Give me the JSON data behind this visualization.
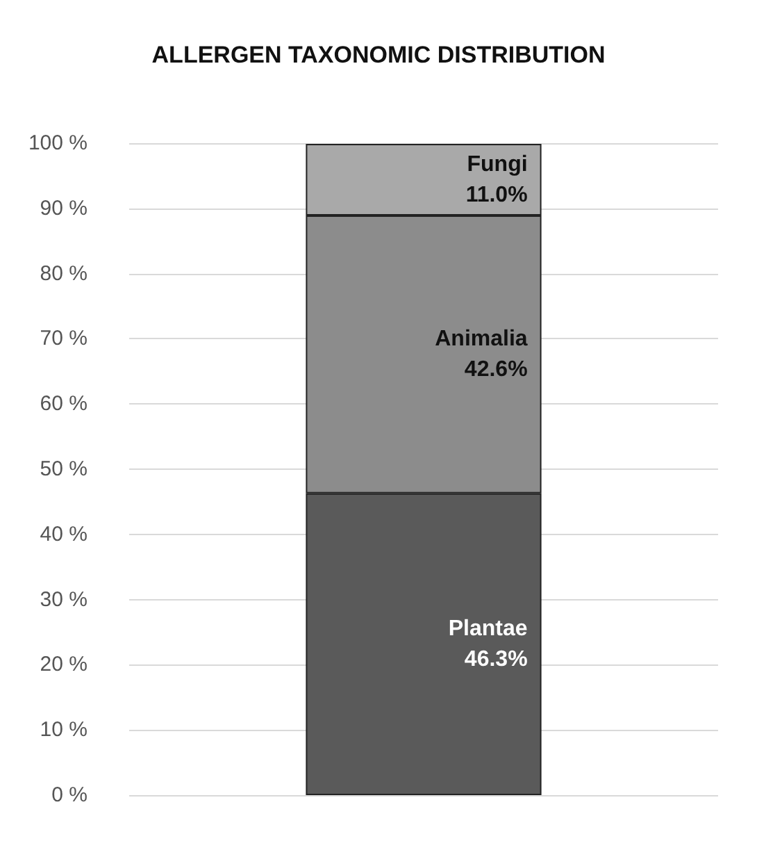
{
  "chart_data": {
    "type": "bar",
    "title": "ALLERGEN TAXONOMIC DISTRIBUTION",
    "categories": [
      null
    ],
    "stacked": true,
    "series": [
      {
        "name": "Plantae",
        "color": "#5a5a5a",
        "values": [
          46.3
        ],
        "value_labels": [
          "46.3%"
        ]
      },
      {
        "name": "Animalia",
        "color": "#8c8c8c",
        "values": [
          42.6
        ],
        "value_labels": [
          "42.6%"
        ]
      },
      {
        "name": "Fungi",
        "color": "#a9a9a9",
        "values": [
          11.0
        ],
        "value_labels": [
          "11.0%"
        ]
      }
    ],
    "ylim": [
      0,
      100
    ],
    "yticks": [
      {
        "value": 0,
        "label": "0 %"
      },
      {
        "value": 10,
        "label": "10 %"
      },
      {
        "value": 20,
        "label": "20 %"
      },
      {
        "value": 30,
        "label": "30 %"
      },
      {
        "value": 40,
        "label": "40 %"
      },
      {
        "value": 50,
        "label": "50 %"
      },
      {
        "value": 60,
        "label": "60 %"
      },
      {
        "value": 70,
        "label": "70 %"
      },
      {
        "value": 80,
        "label": "80 %"
      },
      {
        "value": 90,
        "label": "90 %"
      },
      {
        "value": 100,
        "label": "100 %"
      }
    ],
    "grid": "y",
    "tick_labels": "y",
    "legend": false
  }
}
